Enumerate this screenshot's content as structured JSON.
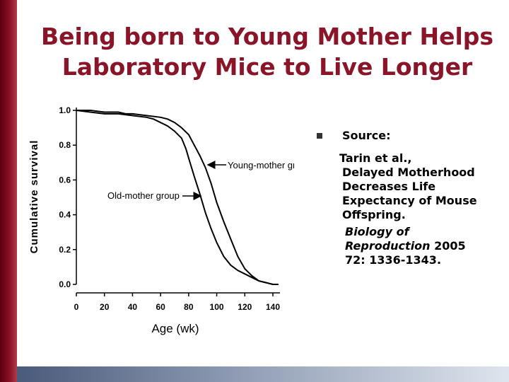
{
  "slide": {
    "title_line1": "Being born to Young Mother Helps",
    "title_line2": "Laboratory Mice to Live Longer"
  },
  "source": {
    "heading": "Source:",
    "authors": "Tarin et al.,",
    "paper_title_lines": [
      "Delayed Motherhood",
      "Decreases Life",
      "Expectancy of Mouse",
      "Offspring."
    ],
    "journal_line1": "Biology of",
    "journal_line2": "Reproduction",
    "year": "2005",
    "volume_pages": "72: 1336-1343."
  },
  "chart_data": {
    "type": "line",
    "title": "",
    "xlabel": "Age (wk)",
    "ylabel": "Cumulative survival",
    "xlim": [
      0,
      145
    ],
    "ylim": [
      0,
      1.05
    ],
    "x_ticks": [
      "0",
      "20",
      "40",
      "60",
      "80",
      "100",
      "120",
      "140"
    ],
    "y_ticks": [
      "0.0",
      "0.2",
      "0.4",
      "0.6",
      "0.8",
      "1.0"
    ],
    "grid": false,
    "annotations": [
      {
        "text": "Young-mother group",
        "series": 0
      },
      {
        "text": "Old-mother group",
        "series": 1
      }
    ],
    "series": [
      {
        "name": "Young-mother group",
        "x": [
          0,
          10,
          20,
          30,
          35,
          40,
          50,
          60,
          65,
          70,
          75,
          80,
          84,
          88,
          92,
          96,
          100,
          105,
          110,
          115,
          120,
          125,
          130,
          135,
          140,
          144
        ],
        "y": [
          1.0,
          1.0,
          0.99,
          0.99,
          0.98,
          0.98,
          0.97,
          0.96,
          0.95,
          0.93,
          0.9,
          0.86,
          0.8,
          0.74,
          0.67,
          0.58,
          0.47,
          0.36,
          0.26,
          0.16,
          0.09,
          0.05,
          0.02,
          0.01,
          0.0,
          0.0
        ]
      },
      {
        "name": "Old-mother group",
        "x": [
          0,
          10,
          20,
          30,
          40,
          50,
          55,
          60,
          65,
          70,
          75,
          78,
          81,
          84,
          88,
          92,
          96,
          100,
          105,
          110,
          115,
          120,
          125,
          130,
          135,
          140
        ],
        "y": [
          1.0,
          0.99,
          0.98,
          0.98,
          0.97,
          0.96,
          0.95,
          0.93,
          0.91,
          0.88,
          0.84,
          0.78,
          0.7,
          0.62,
          0.52,
          0.41,
          0.32,
          0.24,
          0.16,
          0.11,
          0.08,
          0.06,
          0.04,
          0.02,
          0.01,
          0.0
        ]
      }
    ]
  }
}
